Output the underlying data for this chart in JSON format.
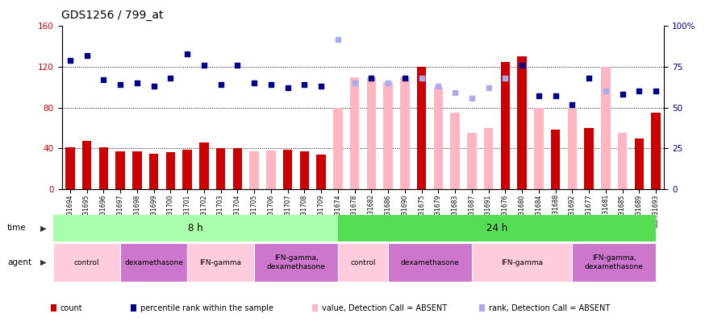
{
  "title": "GDS1256 / 799_at",
  "samples": [
    "GSM31694",
    "GSM31695",
    "GSM31696",
    "GSM31697",
    "GSM31698",
    "GSM31699",
    "GSM31700",
    "GSM31701",
    "GSM31702",
    "GSM31703",
    "GSM31704",
    "GSM31705",
    "GSM31706",
    "GSM31707",
    "GSM31708",
    "GSM31709",
    "GSM31674",
    "GSM31678",
    "GSM31682",
    "GSM31686",
    "GSM31690",
    "GSM31675",
    "GSM31679",
    "GSM31683",
    "GSM31687",
    "GSM31691",
    "GSM31676",
    "GSM31680",
    "GSM31684",
    "GSM31688",
    "GSM31692",
    "GSM31677",
    "GSM31681",
    "GSM31685",
    "GSM31689",
    "GSM31693"
  ],
  "count_bar_heights": [
    41,
    47,
    41,
    37,
    37,
    35,
    36,
    39,
    46,
    40,
    40,
    37,
    38,
    39,
    37,
    34,
    80,
    110,
    110,
    105,
    110,
    120,
    100,
    75,
    55,
    60,
    125,
    130,
    80,
    58,
    80,
    60,
    120,
    55,
    50,
    75
  ],
  "count_bar_absent": [
    false,
    false,
    false,
    false,
    false,
    false,
    false,
    false,
    false,
    false,
    false,
    true,
    true,
    false,
    false,
    false,
    true,
    true,
    true,
    true,
    true,
    false,
    true,
    true,
    true,
    true,
    false,
    false,
    true,
    false,
    true,
    false,
    true,
    true,
    false,
    false
  ],
  "rank_dot_values": [
    79,
    82,
    67,
    64,
    65,
    63,
    68,
    83,
    76,
    64,
    76,
    65,
    64,
    62,
    64,
    63,
    92,
    65,
    68,
    65,
    68,
    68,
    63,
    59,
    56,
    62,
    68,
    76,
    57,
    57,
    52,
    68,
    60,
    58,
    60,
    60
  ],
  "rank_dot_absent": [
    false,
    false,
    false,
    false,
    false,
    false,
    false,
    false,
    false,
    false,
    false,
    false,
    false,
    false,
    false,
    false,
    true,
    true,
    false,
    true,
    false,
    true,
    true,
    true,
    true,
    true,
    true,
    false,
    false,
    false,
    false,
    false,
    true,
    false,
    false,
    false
  ],
  "left_ylim": [
    0,
    160
  ],
  "left_yticks": [
    0,
    40,
    80,
    120,
    160
  ],
  "right_ytick_labels": [
    "0",
    "25",
    "50",
    "75",
    "100%"
  ],
  "hlines": [
    40,
    80,
    120
  ],
  "color_count": "#CC0000",
  "color_count_absent": "#FFB6C1",
  "color_rank": "#00008B",
  "color_rank_absent": "#AAAAEE",
  "time_8h_color": "#AAFFAA",
  "time_24h_color": "#55DD55",
  "agent_groups": [
    {
      "label": "control",
      "start": 0,
      "end": 3,
      "color": "#FFCCDD"
    },
    {
      "label": "dexamethasone",
      "start": 4,
      "end": 7,
      "color": "#CC77CC"
    },
    {
      "label": "IFN-gamma",
      "start": 8,
      "end": 11,
      "color": "#FFCCDD"
    },
    {
      "label": "IFN-gamma,\ndexamethasone",
      "start": 12,
      "end": 16,
      "color": "#CC77CC"
    },
    {
      "label": "control",
      "start": 17,
      "end": 19,
      "color": "#FFCCDD"
    },
    {
      "label": "dexamethasone",
      "start": 20,
      "end": 24,
      "color": "#CC77CC"
    },
    {
      "label": "IFN-gamma",
      "start": 25,
      "end": 30,
      "color": "#FFCCDD"
    },
    {
      "label": "IFN-gamma,\ndexamethasone",
      "start": 31,
      "end": 35,
      "color": "#CC77CC"
    }
  ]
}
